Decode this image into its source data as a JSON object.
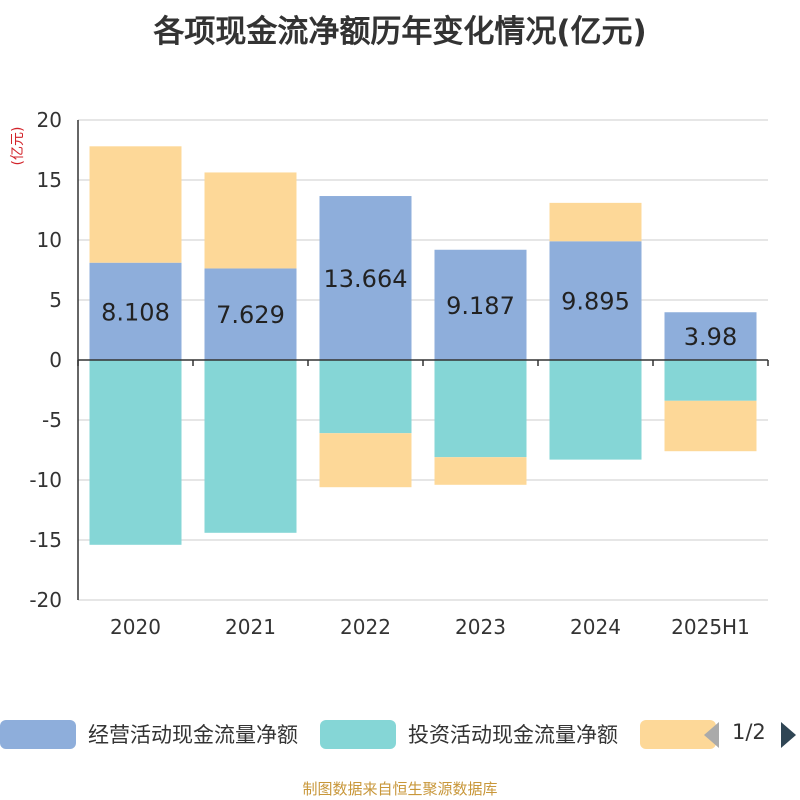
{
  "chart_data": {
    "type": "bar",
    "stacked": true,
    "title": "各项现金流净额历年变化情况(亿元)",
    "ylabel": "(亿元)",
    "ylim": [
      -20,
      20
    ],
    "yticks": [
      20,
      15,
      10,
      5,
      0,
      -5,
      -10,
      -15,
      -20
    ],
    "categories": [
      "2020",
      "2021",
      "2022",
      "2023",
      "2024",
      "2025H1"
    ],
    "series": [
      {
        "name": "经营活动现金流量净额",
        "color": "#8eaedb",
        "values": [
          8.108,
          7.629,
          13.664,
          9.187,
          9.895,
          3.98
        ],
        "labels": [
          "8.108",
          "7.629",
          "13.664",
          "9.187",
          "9.895",
          "3.98"
        ]
      },
      {
        "name": "投资活动现金流量净额",
        "color": "#85d6d6",
        "values": [
          -15.4,
          -14.4,
          -6.1,
          -8.1,
          -8.3,
          -3.4
        ]
      },
      {
        "name": "",
        "color": "#fdd898",
        "values": [
          9.7,
          8.0,
          -4.5,
          -2.3,
          3.2,
          -4.2
        ]
      }
    ],
    "legend_position": "bottom",
    "grid": true
  },
  "legend": {
    "pager_text": "1/2"
  },
  "source_note": "制图数据来自恒生聚源数据库"
}
